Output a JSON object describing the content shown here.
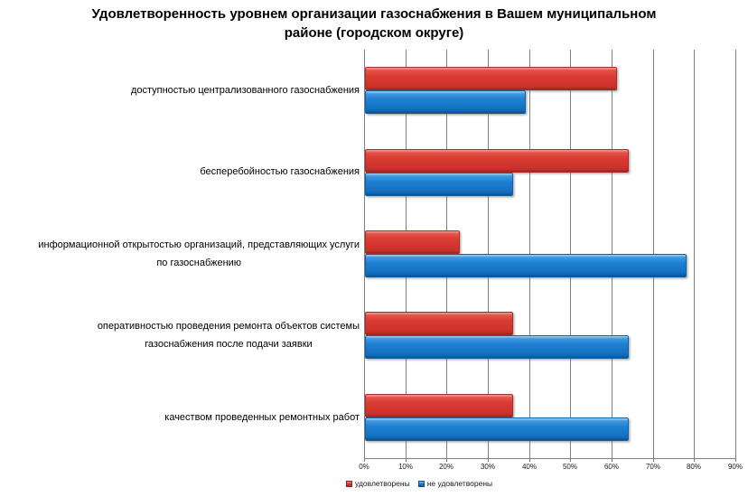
{
  "chart_data": {
    "type": "bar",
    "orientation": "horizontal",
    "title": "Удовлетворенность уровнем организации газоснабжения в Вашем муниципальном\nрайоне (городском округе)",
    "categories": [
      "доступностью централизованного газоснабжения",
      "бесперебойностью газоснабжения",
      "информационной открытостью организаций, представляющих услуги\nпо газоснабжению",
      "оперативностью проведения ремонта объектов системы\nгазоснабжения после подачи заявки",
      "качеством проведенных ремонтных работ"
    ],
    "series": [
      {
        "name": "удовлетворены",
        "color": "#d93b32",
        "values": [
          61,
          64,
          23,
          36,
          36
        ]
      },
      {
        "name": "не удовлетворены",
        "color": "#1e80d3",
        "values": [
          39,
          36,
          78,
          64,
          64
        ]
      }
    ],
    "value_unit": "%",
    "xlim": [
      0,
      90
    ],
    "x_ticks": [
      "0%",
      "10%",
      "20%",
      "30%",
      "40%",
      "50%",
      "60%",
      "70%",
      "80%",
      "90%"
    ],
    "grid": true,
    "legend_position": "bottom",
    "colors": {
      "grid": "#808080",
      "axis": "#808080",
      "background": "#ffffff",
      "text": "#000000"
    }
  }
}
